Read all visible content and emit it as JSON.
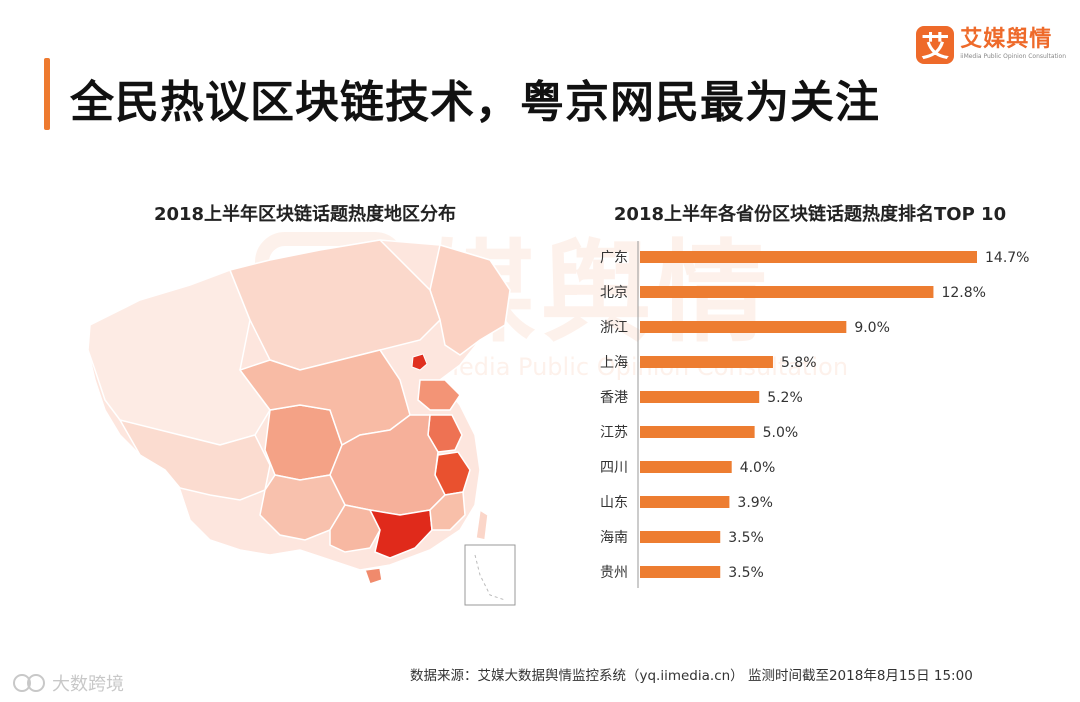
{
  "header": {
    "title": "全民热议区块链技术，粤京网民最为关注"
  },
  "logo": {
    "mark": "艾",
    "name": "艾媒舆情",
    "sub": "iiMedia Public Opinion Consultation"
  },
  "map": {
    "title": "2018上半年区块链话题热度地区分布"
  },
  "chart_data": {
    "type": "bar",
    "orientation": "horizontal",
    "title": "2018上半年各省份区块链话题热度排名TOP 10",
    "categories": [
      "广东",
      "北京",
      "浙江",
      "上海",
      "香港",
      "江苏",
      "四川",
      "山东",
      "海南",
      "贵州"
    ],
    "values": [
      14.7,
      12.8,
      9.0,
      5.8,
      5.2,
      5.0,
      4.0,
      3.9,
      3.5,
      3.5
    ],
    "value_labels": [
      "14.7%",
      "12.8%",
      "9.0%",
      "5.8%",
      "5.2%",
      "5.0%",
      "4.0%",
      "3.9%",
      "3.5%",
      "3.5%"
    ],
    "bar_color": "#ed7d31",
    "xlim": [
      0,
      15
    ],
    "grid": false
  },
  "footer": {
    "source": "数据来源：艾媒大数据舆情监控系统（yq.iimedia.cn）   监测时间截至2018年8月15日 15:00"
  },
  "account": {
    "name": "大数跨境"
  },
  "colors": {
    "accent": "#ee7a2f",
    "brand": "#ee6a2a",
    "map_light": "#fde6de",
    "map_mid": "#f6a98f",
    "map_dark": "#e8452c",
    "map_max": "#e02a1b"
  }
}
